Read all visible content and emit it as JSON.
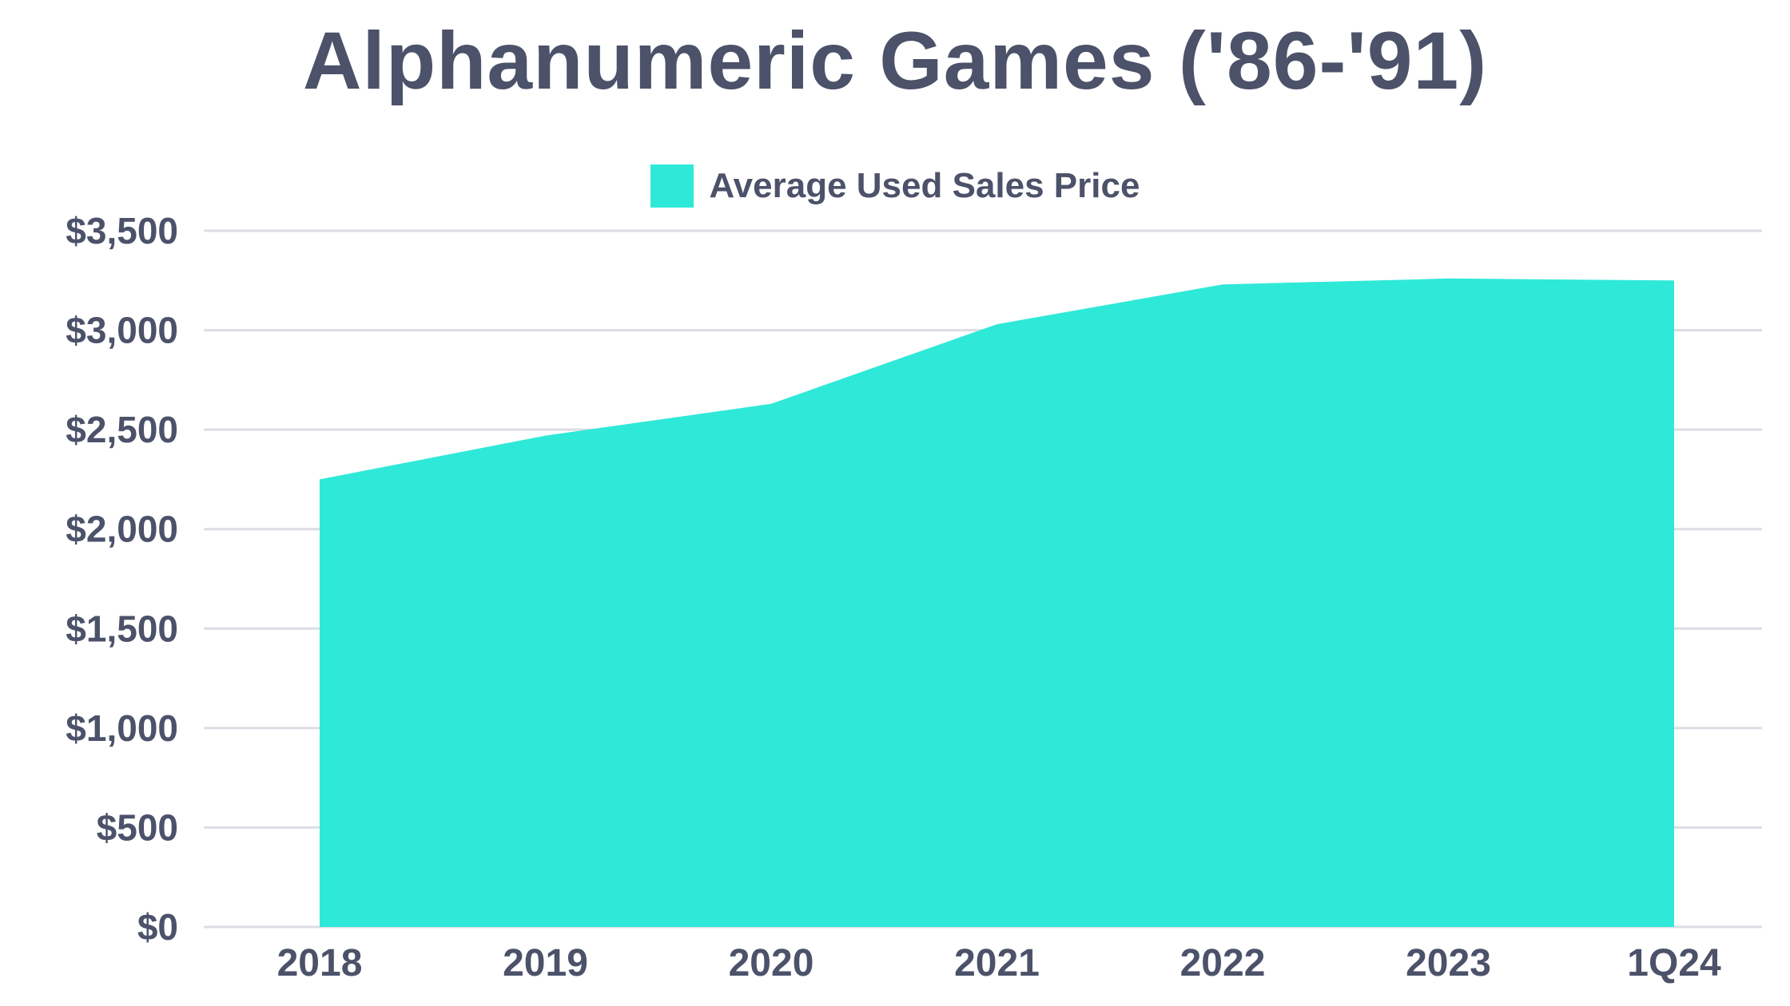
{
  "title": "Alphanumeric Games ('86-'91)",
  "legend": {
    "label": "Average Used Sales Price"
  },
  "colors": {
    "accent": "#2FE9D8",
    "text": "#4B5269",
    "grid": "#DBDEE4",
    "background": "#FFFFFF"
  },
  "chart_data": {
    "type": "area",
    "title": "Alphanumeric Games ('86-'91)",
    "legend_entries": [
      "Average Used Sales Price"
    ],
    "legend_position": "top-center",
    "categories": [
      "2018",
      "2019",
      "2020",
      "2021",
      "2022",
      "2023",
      "1Q24"
    ],
    "series": [
      {
        "name": "Average Used Sales Price",
        "values": [
          2250,
          2470,
          2630,
          3030,
          3230,
          3260,
          3250
        ]
      }
    ],
    "xlabel": "",
    "ylabel": "",
    "ylim": [
      0,
      3500
    ],
    "ytick_step": 500,
    "ytick_labels": [
      "$0",
      "$500",
      "$1,000",
      "$1,500",
      "$2,000",
      "$2,500",
      "$3,000",
      "$3,500"
    ],
    "grid": true
  }
}
